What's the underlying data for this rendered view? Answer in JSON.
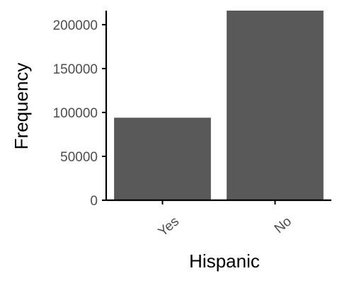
{
  "chart_data": {
    "type": "bar",
    "categories": [
      "Yes",
      "No"
    ],
    "values": [
      94000,
      216000
    ],
    "xlabel": "Hispanic",
    "ylabel": "Frequency",
    "ylim": [
      0,
      216000
    ],
    "yticks": [
      0,
      50000,
      100000,
      150000,
      200000
    ],
    "ytick_labels": [
      "0",
      "50000",
      "100000",
      "150000",
      "200000"
    ],
    "grid": false,
    "legend": "none",
    "bar_color": "#595959",
    "axis_color": "#000000",
    "tick_label_color": "#4d4d4d"
  }
}
